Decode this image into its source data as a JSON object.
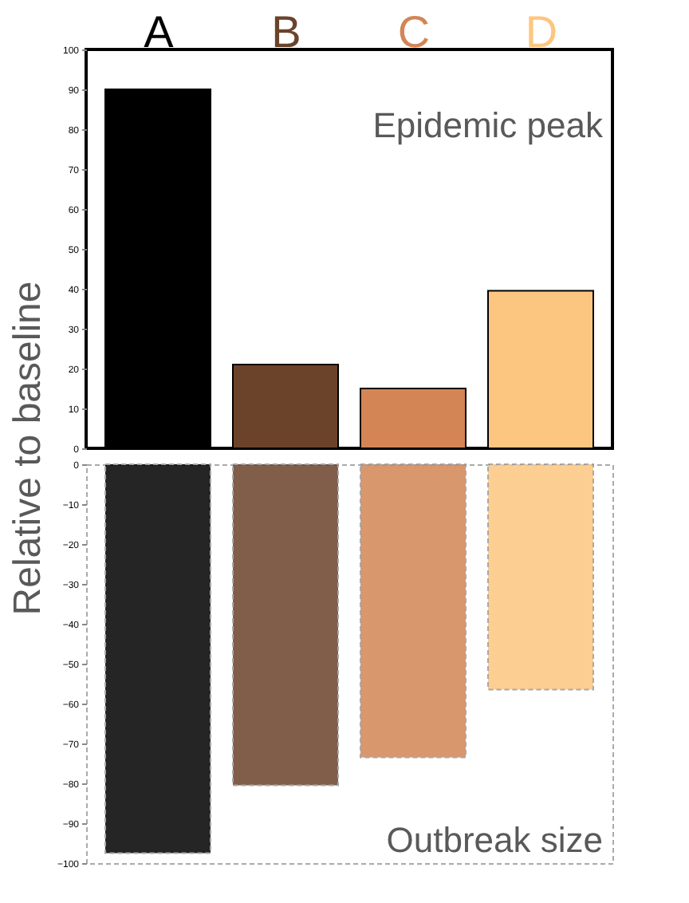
{
  "chart_data": [
    {
      "type": "bar",
      "ylabel": "Relative to baseline",
      "categories": [
        "A",
        "B",
        "C",
        "D"
      ],
      "values": [
        90,
        21,
        15,
        39.5
      ],
      "colors": [
        "#000000",
        "#6b432b",
        "#d38555",
        "#fdc680"
      ],
      "ylim": [
        0,
        100
      ],
      "yticks": [
        0,
        10,
        20,
        30,
        40,
        50,
        60,
        70,
        80,
        90,
        100
      ],
      "annotations": [
        "Epidemic peak"
      ],
      "grid": false
    },
    {
      "type": "bar",
      "categories": [
        null,
        null,
        null,
        null
      ],
      "values": [
        -97.5,
        -80.5,
        -73.5,
        -56.5
      ],
      "colors": [
        "#000000",
        "#6b432b",
        "#d38555",
        "#fdc680"
      ],
      "ylim": [
        -100,
        0
      ],
      "yticks": [
        -100,
        -90,
        -80,
        -70,
        -60,
        -50,
        -40,
        -30,
        -20,
        -10,
        0
      ],
      "annotations": [
        "Outbreak size"
      ],
      "grid": false,
      "tick_labels": "y"
    }
  ]
}
